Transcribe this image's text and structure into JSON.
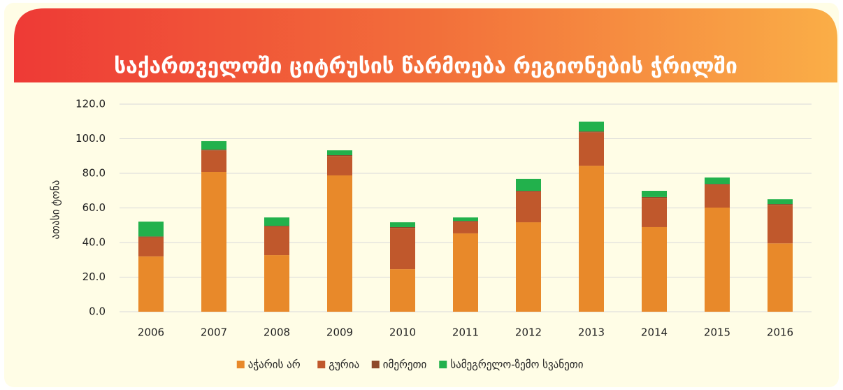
{
  "chart_data": {
    "type": "stacked_bar",
    "title": "საქართველოში ციტრუსის წარმოება რეგიონების ჭრილში",
    "y_label": "ათასი ტონა",
    "categories": [
      "2006",
      "2007",
      "2008",
      "2009",
      "2010",
      "2011",
      "2012",
      "2013",
      "2014",
      "2015",
      "2016"
    ],
    "series": [
      {
        "name": "აჭარის არ",
        "color": "#E8892A",
        "values": [
          32,
          80.8,
          32.7,
          78.8,
          24.6,
          45.3,
          51.7,
          84.4,
          48.9,
          60.2,
          39.5
        ]
      },
      {
        "name": "გურია",
        "color": "#C0582C",
        "values": [
          11,
          12.4,
          16.5,
          11.2,
          23.8,
          6.7,
          17.7,
          19.3,
          16.9,
          13.2,
          22.2
        ]
      },
      {
        "name": "იმერეთი",
        "color": "#8E4A2A",
        "values": [
          0.5,
          0.5,
          0.5,
          0.5,
          0.5,
          0.5,
          0.5,
          0.5,
          0.5,
          0.5,
          0.5
        ]
      },
      {
        "name": "სამეგრელო-ზემო სვანეთი",
        "color": "#22B14C",
        "values": [
          8.6,
          4.9,
          4.8,
          2.8,
          2.8,
          2.0,
          6.9,
          5.7,
          3.6,
          3.7,
          2.8
        ]
      }
    ],
    "ylim": [
      0,
      120
    ],
    "yticks": [
      {
        "value": 0,
        "label": "0.0"
      },
      {
        "value": 20,
        "label": "20.0"
      },
      {
        "value": 40,
        "label": "40.0"
      },
      {
        "value": 60,
        "label": "60.0"
      },
      {
        "value": 80,
        "label": "80.0"
      },
      {
        "value": 100,
        "label": "100.0"
      },
      {
        "value": 120,
        "label": "120.0"
      }
    ],
    "grid": true,
    "legend": "bottom"
  }
}
